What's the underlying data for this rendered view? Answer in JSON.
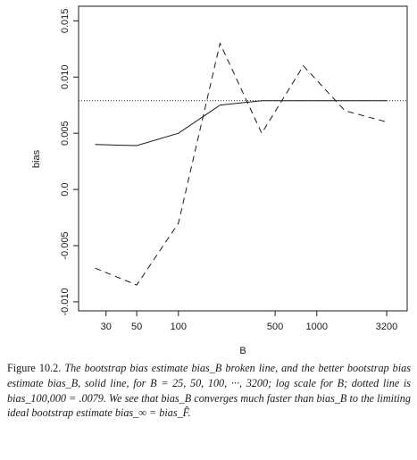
{
  "chart_data": {
    "type": "line",
    "title": "",
    "xlabel": "B",
    "ylabel": "bias",
    "x_scale": "log",
    "x": [
      25,
      50,
      100,
      200,
      400,
      800,
      1600,
      3200
    ],
    "x_ticks": [
      30,
      50,
      100,
      500,
      1000,
      3200
    ],
    "x_tick_labels": [
      "30",
      "50",
      "100",
      "500",
      "1000",
      "3200"
    ],
    "y_ticks": [
      -0.01,
      -0.005,
      0.0,
      0.005,
      0.01,
      0.015
    ],
    "y_tick_labels": [
      "-0.010",
      "-0.005",
      "0.0",
      "0.005",
      "0.010",
      "0.015"
    ],
    "xlim": [
      19,
      4500
    ],
    "ylim": [
      -0.0108,
      0.0163
    ],
    "grid": false,
    "legend": "none",
    "series": [
      {
        "style": "dashed",
        "values": [
          -0.007,
          -0.0085,
          -0.003,
          0.013,
          0.005,
          0.011,
          0.007,
          0.006
        ]
      },
      {
        "style": "solid",
        "values": [
          0.004,
          0.0039,
          0.005,
          0.0075,
          0.0079,
          0.0079,
          0.0079,
          0.0079
        ]
      }
    ],
    "reference_line": {
      "style": "dotted",
      "y": 0.0079
    }
  },
  "caption": {
    "figure_label": "Figure 10.2.",
    "text": "The bootstrap bias estimate bias_B broken line, and the better bootstrap bias estimate bias_B, solid line, for B = 25, 50, 100, ···, 3200; log scale for B; dotted line is bias_100,000 = .0079. We see that bias_B converges much faster than bias_B to the limiting ideal bootstrap estimate bias_∞ = bias_F̂."
  },
  "colors": {
    "ink": "#1a1a1a",
    "background": "#ffffff"
  }
}
